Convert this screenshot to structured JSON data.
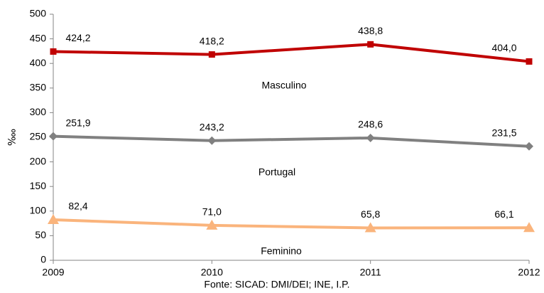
{
  "chart_data": {
    "type": "line",
    "categories": [
      "2009",
      "2010",
      "2011",
      "2012"
    ],
    "series": [
      {
        "name": "Masculino",
        "color": "#c00000",
        "marker": "square",
        "values": [
          424.2,
          418.2,
          438.8,
          404.0
        ],
        "value_labels": [
          "424,2",
          "418,2",
          "438,8",
          "404,0"
        ]
      },
      {
        "name": "Portugal",
        "color": "#808080",
        "marker": "diamond",
        "values": [
          251.9,
          243.2,
          248.6,
          231.5
        ],
        "value_labels": [
          "251,9",
          "243,2",
          "248,6",
          "231,5"
        ]
      },
      {
        "name": "Feminino",
        "color": "#fab47c",
        "marker": "triangle",
        "values": [
          82.4,
          71.0,
          65.8,
          66.1
        ],
        "value_labels": [
          "82,4",
          "71,0",
          "65,8",
          "66,1"
        ]
      }
    ],
    "ylabel": "‱",
    "caption": "Fonte: SICAD: DMI/DEI; INE, I.P.",
    "ylim": [
      0,
      500
    ],
    "yticks": [
      0,
      50,
      100,
      150,
      200,
      250,
      300,
      350,
      400,
      450,
      500
    ],
    "grid": false
  }
}
